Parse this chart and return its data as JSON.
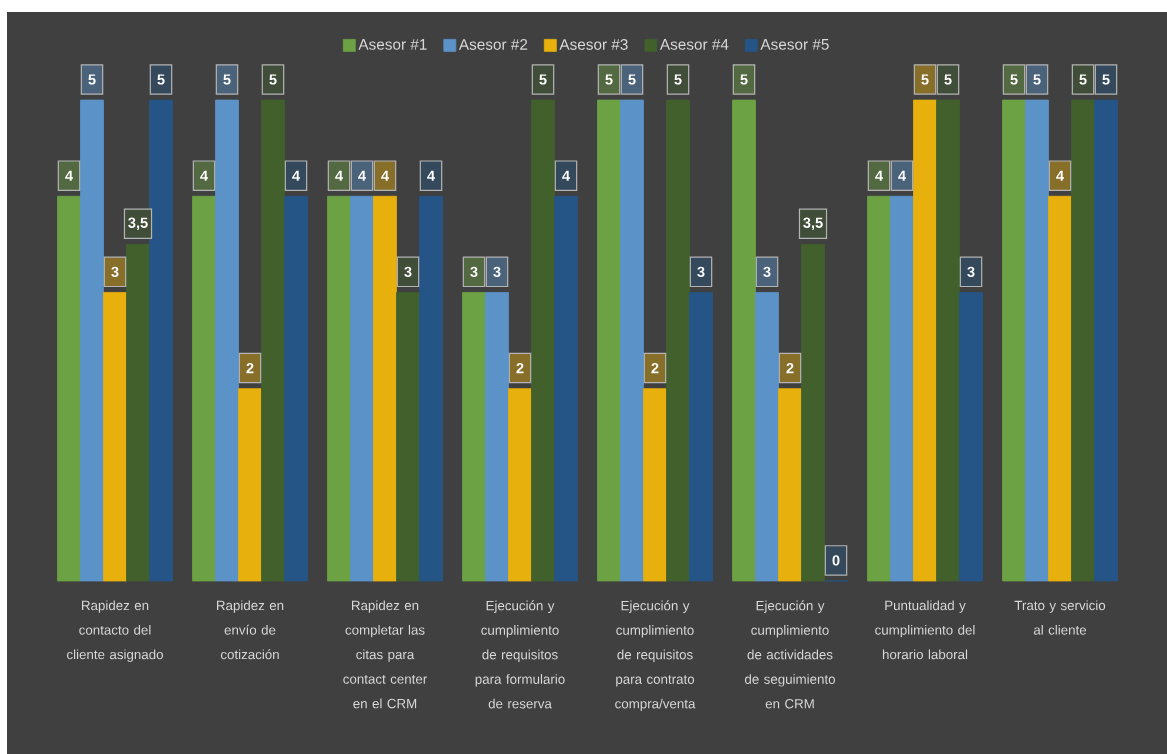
{
  "chart_data": {
    "type": "bar",
    "categories": [
      "Rapidez en contacto del cliente asignado",
      "Rapidez en envío de cotización",
      "Rapidez en completar las citas para contact center en el CRM",
      "Ejecución y cumplimiento de requisitos para formulario de reserva",
      "Ejecución y cumplimiento de requisitos para contrato compra/venta",
      "Ejecución y cumplimiento de actividades de seguimiento en CRM",
      "Puntualidad y cumplimiento del horario laboral",
      "Trato y servicio al cliente"
    ],
    "series": [
      {
        "name": "Asesor #1",
        "color": "#6ca244",
        "values": [
          4,
          4,
          4,
          3,
          5,
          5,
          4,
          5
        ],
        "value_labels": [
          "4",
          "4",
          "4",
          "3",
          "5",
          "5",
          "4",
          "5"
        ]
      },
      {
        "name": "Asesor #2",
        "color": "#5b93c9",
        "values": [
          5,
          5,
          4,
          3,
          5,
          3,
          4,
          5
        ],
        "value_labels": [
          "5",
          "5",
          "4",
          "3",
          "5",
          "3",
          "4",
          "5"
        ]
      },
      {
        "name": "Asesor #3",
        "color": "#e8b00c",
        "values": [
          3,
          2,
          4,
          2,
          2,
          2,
          5,
          4
        ],
        "value_labels": [
          "3",
          "2",
          "4",
          "2",
          "2",
          "2",
          "5",
          "4"
        ]
      },
      {
        "name": "Asesor #4",
        "color": "#41602c",
        "values": [
          3.5,
          5,
          3,
          5,
          5,
          3.5,
          5,
          5
        ],
        "value_labels": [
          "3,5",
          "5",
          "3",
          "5",
          "5",
          "3,5",
          "5",
          "5"
        ]
      },
      {
        "name": "Asesor #5",
        "color": "#255586",
        "values": [
          5,
          4,
          4,
          4,
          3,
          0,
          3,
          5
        ],
        "value_labels": [
          "5",
          "4",
          "4",
          "4",
          "3",
          "0",
          "3",
          "5"
        ]
      }
    ],
    "legend": "top",
    "tick_labels": "x"
  }
}
